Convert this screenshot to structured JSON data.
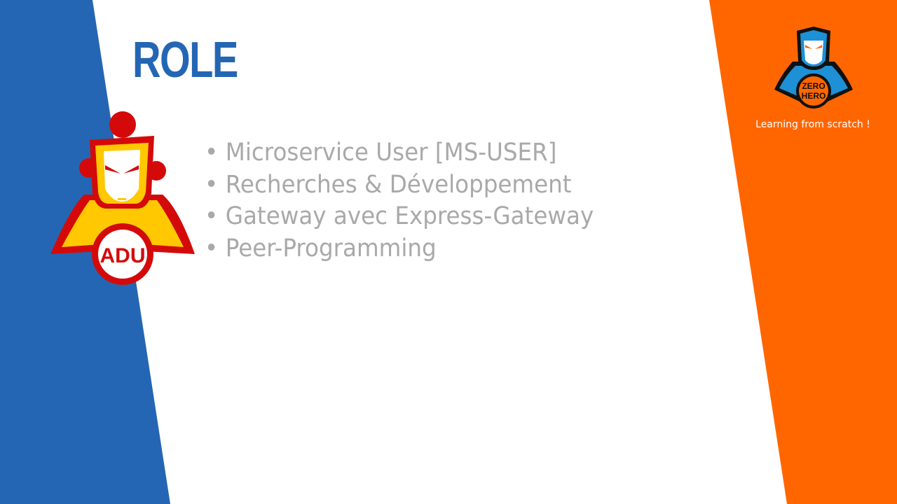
{
  "slide": {
    "title": "ROLE",
    "bullet_marker": "•",
    "bullets": [
      "Microservice User [MS-USER]",
      "Recherches & Développement",
      "Gateway avec Express-Gateway",
      "Peer-Programming"
    ]
  },
  "branding": {
    "logo_text_top": "ZERO",
    "logo_text_bottom": "HERO",
    "tagline": "Learning from scratch !"
  },
  "mascot": {
    "badge_text": "ADU"
  },
  "colors": {
    "blue": "#2466b3",
    "orange": "#ff6600",
    "bullet_text": "#a9a9a9",
    "mascot_red": "#d40a0a",
    "mascot_yellow": "#ffc800"
  },
  "icons": {
    "mascot": "superhero-mascot-icon",
    "logo": "zero-to-hero-logo-icon"
  }
}
